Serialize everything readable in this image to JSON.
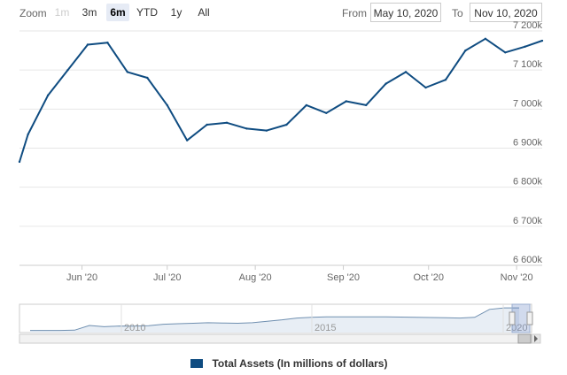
{
  "toolbar": {
    "zoom_label": "Zoom",
    "zoom_buttons": [
      {
        "label": "1m",
        "state": "disabled"
      },
      {
        "label": "3m",
        "state": "normal"
      },
      {
        "label": "6m",
        "state": "active"
      },
      {
        "label": "YTD",
        "state": "normal"
      },
      {
        "label": "1y",
        "state": "normal"
      },
      {
        "label": "All",
        "state": "normal"
      }
    ],
    "from_label": "From",
    "from_value": "May 10, 2020",
    "to_label": "To",
    "to_value": "Nov 10, 2020"
  },
  "colors": {
    "series": "#0f4c81",
    "grid": "#e6e6e6",
    "navigator_fill": "#e8eef5"
  },
  "chart_data": {
    "type": "line",
    "title": "",
    "xlabel": "",
    "ylabel": "",
    "x_ticks": [
      "Jun '20",
      "Jul '20",
      "Aug '20",
      "Sep '20",
      "Oct '20",
      "Nov '20"
    ],
    "y_ticks": [
      "6 600k",
      "6 700k",
      "6 800k",
      "6 900k",
      "7 000k",
      "7 100k",
      "7 200k"
    ],
    "ylim": [
      6600000,
      7200000
    ],
    "xlim": [
      "2020-05-10",
      "2020-11-10"
    ],
    "grid": true,
    "legend_position": "bottom",
    "series": [
      {
        "name": "Total Assets (In millions of dollars)",
        "x": [
          "2020-05-10",
          "2020-05-13",
          "2020-05-20",
          "2020-05-27",
          "2020-06-03",
          "2020-06-10",
          "2020-06-17",
          "2020-06-24",
          "2020-07-01",
          "2020-07-08",
          "2020-07-15",
          "2020-07-22",
          "2020-07-29",
          "2020-08-05",
          "2020-08-12",
          "2020-08-19",
          "2020-08-26",
          "2020-09-02",
          "2020-09-09",
          "2020-09-16",
          "2020-09-23",
          "2020-09-30",
          "2020-10-07",
          "2020-10-14",
          "2020-10-21",
          "2020-10-28",
          "2020-11-04",
          "2020-11-10"
        ],
        "values": [
          6865000,
          6935000,
          7035000,
          7100000,
          7165000,
          7170000,
          7095000,
          7080000,
          7010000,
          6920000,
          6960000,
          6965000,
          6950000,
          6945000,
          6960000,
          7010000,
          6990000,
          7020000,
          7010000,
          7065000,
          7095000,
          7055000,
          7075000,
          7150000,
          7180000,
          7145000,
          7160000,
          7175000
        ]
      }
    ],
    "navigator": {
      "x_ticks": [
        "2010",
        "2015",
        "2020"
      ],
      "values": [
        0.05,
        0.05,
        0.05,
        0.06,
        0.25,
        0.2,
        0.23,
        0.22,
        0.24,
        0.3,
        0.32,
        0.34,
        0.36,
        0.35,
        0.34,
        0.36,
        0.42,
        0.48,
        0.55,
        0.58,
        0.6,
        0.6,
        0.6,
        0.6,
        0.6,
        0.59,
        0.58,
        0.57,
        0.56,
        0.55,
        0.58,
        0.9,
        0.96,
        0.96
      ]
    }
  }
}
